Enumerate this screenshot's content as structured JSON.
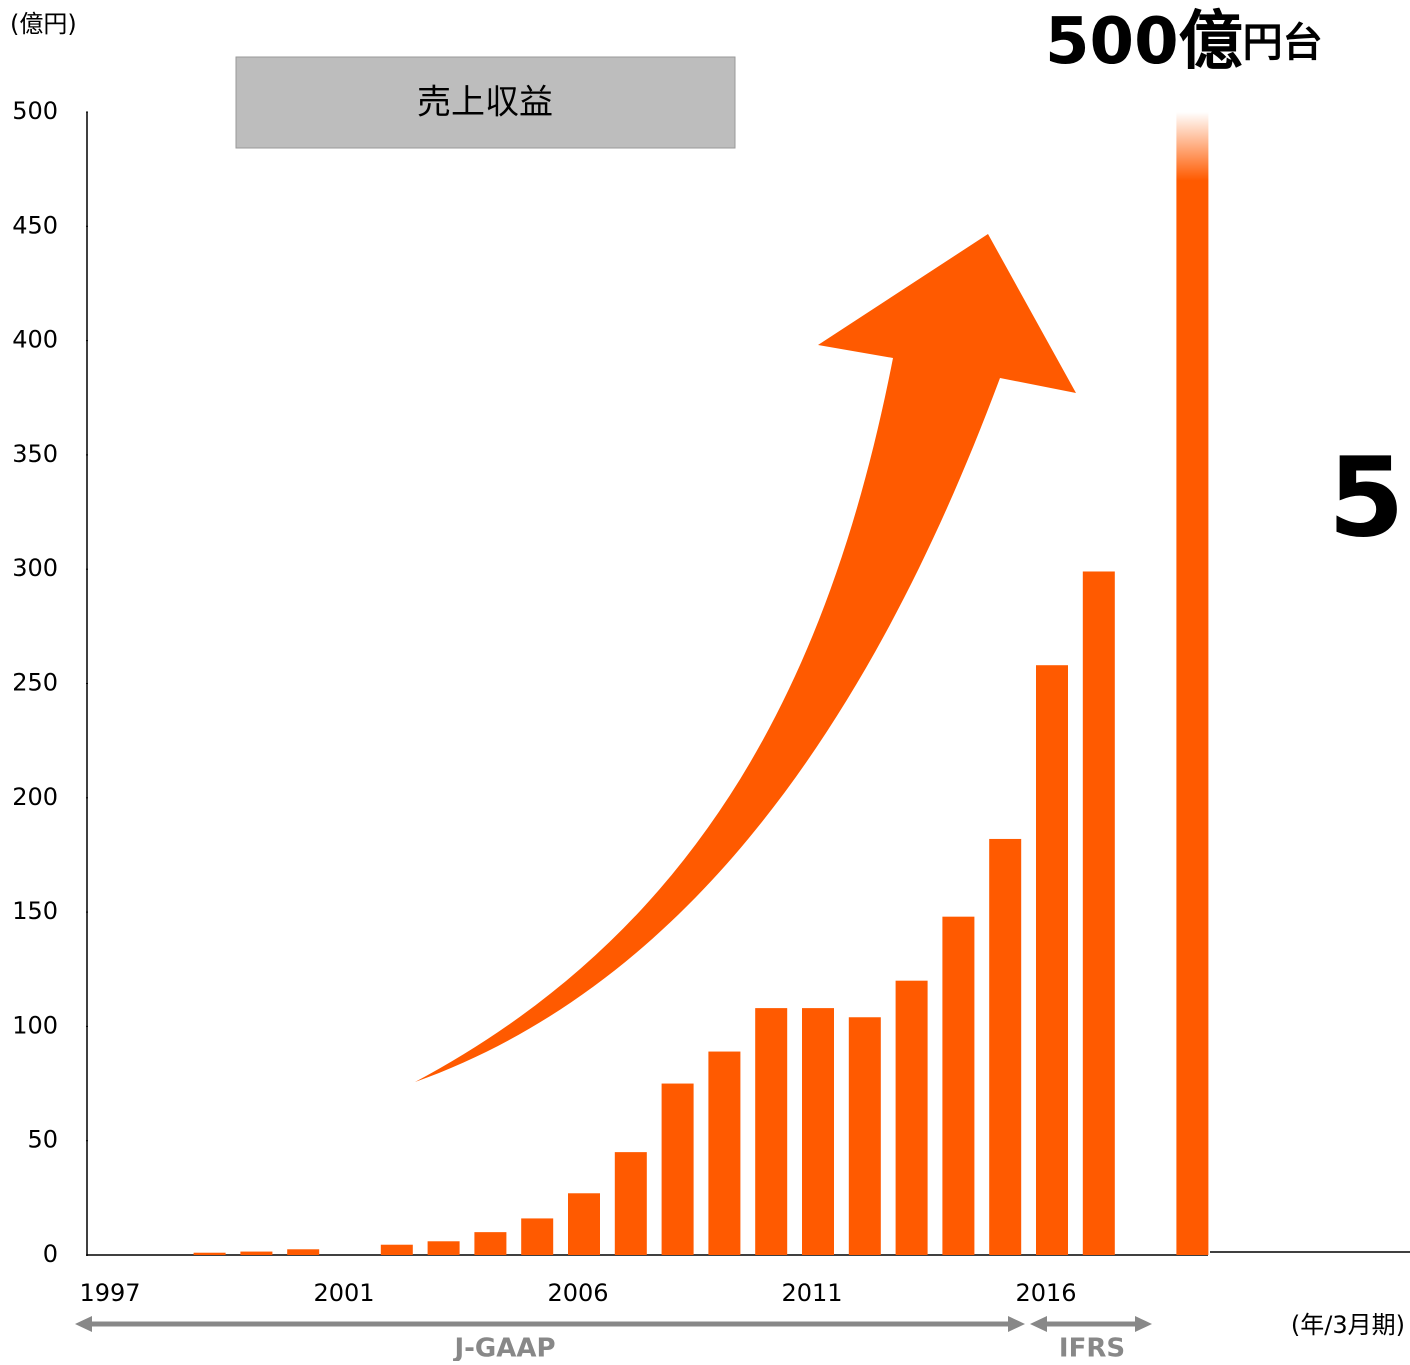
{
  "chart_data": {
    "type": "bar",
    "unit_label": "(億円)",
    "title": "売上収益",
    "headline": "500億",
    "headline_unit": "円台",
    "side_text": "5",
    "x_unit_label": "(年/3月期)",
    "periods": [
      "J-GAAP",
      "IFRS"
    ],
    "categories": [
      "1997",
      null,
      null,
      null,
      null,
      "2001",
      null,
      null,
      null,
      null,
      "2006",
      null,
      null,
      null,
      null,
      "2011",
      null,
      null,
      null,
      null,
      "2016",
      null,
      null,
      null
    ],
    "values": [
      0,
      0,
      1,
      1.5,
      2.5,
      0,
      4.5,
      6,
      10,
      16,
      27,
      45,
      75,
      89,
      108,
      108,
      104,
      120,
      148,
      182,
      258,
      299,
      null,
      500
    ],
    "color": "#ff5a00",
    "ylim": [
      0,
      500
    ],
    "yticks": [
      0,
      50,
      100,
      150,
      200,
      250,
      300,
      350,
      400,
      450,
      500
    ]
  }
}
